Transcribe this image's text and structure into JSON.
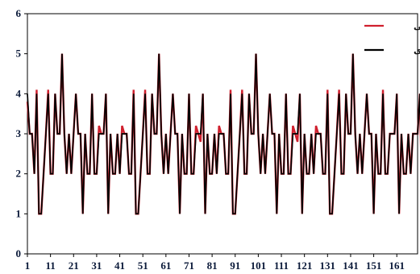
{
  "chart_data": {
    "type": "line",
    "title": "",
    "xlabel": "",
    "ylabel": "",
    "ylim": [
      0,
      6
    ],
    "y_ticks": [
      "0",
      "1",
      "2",
      "3",
      "4",
      "5",
      "6"
    ],
    "x_ticks": [
      "1",
      "11",
      "21",
      "31",
      "41",
      "51",
      "61",
      "71",
      "81",
      "91",
      "101",
      "111",
      "121",
      "131",
      "141",
      "151",
      "161"
    ],
    "x_range": [
      1,
      170
    ],
    "grid": false,
    "legend_position": "top-right",
    "series": [
      {
        "name": "محاسباتی",
        "color": "#d0202e",
        "values": [
          3.8,
          3.0,
          3.0,
          2.0,
          4.1,
          1.0,
          1.0,
          2.0,
          3.0,
          4.1,
          2.0,
          2.0,
          4.0,
          3.0,
          3.0,
          5.0,
          3.0,
          2.0,
          3.0,
          2.0,
          3.0,
          4.0,
          3.0,
          3.0,
          1.0,
          3.0,
          2.0,
          2.0,
          4.0,
          2.0,
          2.0,
          3.2,
          3.0,
          3.0,
          4.0,
          1.0,
          3.0,
          2.0,
          2.0,
          3.0,
          2.0,
          3.2,
          3.0,
          3.0,
          2.0,
          2.0,
          4.1,
          1.0,
          1.0,
          2.0,
          3.0,
          4.1,
          2.0,
          2.0,
          4.0,
          3.0,
          3.0,
          5.0,
          3.0,
          2.0,
          3.0,
          2.0,
          3.0,
          4.0,
          3.0,
          3.0,
          1.0,
          3.0,
          2.0,
          2.0,
          4.0,
          2.0,
          2.0,
          3.2,
          3.0,
          2.8,
          4.0,
          1.0,
          3.0,
          2.0,
          2.0,
          3.0,
          2.0,
          3.2,
          3.0,
          3.0,
          2.0,
          2.0,
          4.1,
          1.0,
          1.0,
          2.0,
          3.0,
          4.1,
          2.0,
          2.0,
          4.0,
          3.0,
          3.0,
          5.0,
          3.0,
          2.0,
          3.0,
          2.0,
          3.0,
          4.0,
          3.0,
          3.0,
          1.0,
          3.0,
          2.0,
          2.0,
          4.0,
          2.0,
          2.0,
          3.2,
          3.0,
          2.8,
          4.0,
          1.0,
          3.0,
          2.0,
          2.0,
          3.0,
          2.0,
          3.2,
          3.0,
          3.0,
          2.0,
          2.0,
          4.1,
          1.0,
          1.0,
          2.0,
          3.0,
          4.1,
          2.0,
          2.0,
          4.0,
          3.0,
          3.0,
          5.0,
          3.0,
          2.0,
          3.0,
          2.0,
          3.0,
          4.0,
          3.0,
          3.0,
          1.0,
          3.0,
          2.0,
          2.0,
          4.1,
          2.0,
          2.0,
          3.0,
          3.0,
          3.0,
          4.0,
          1.0,
          3.0,
          2.0,
          2.0,
          3.0,
          2.0,
          3.0,
          3.0,
          3.0,
          4.0,
          1.0
        ]
      },
      {
        "name": "مشاهده‌ای",
        "color": "#000000",
        "values": [
          4.0,
          3.0,
          3.0,
          2.0,
          4.0,
          1.0,
          1.0,
          2.0,
          3.0,
          4.0,
          2.0,
          2.0,
          4.0,
          3.0,
          3.0,
          5.0,
          3.0,
          2.0,
          3.0,
          2.0,
          3.0,
          4.0,
          3.0,
          3.0,
          1.0,
          3.0,
          2.0,
          2.0,
          4.0,
          2.0,
          2.0,
          3.0,
          3.0,
          3.0,
          4.0,
          1.0,
          3.0,
          2.0,
          2.0,
          3.0,
          2.0,
          3.0,
          3.0,
          3.0,
          2.0,
          2.0,
          4.0,
          1.0,
          1.0,
          2.0,
          3.0,
          4.0,
          2.0,
          2.0,
          4.0,
          3.0,
          3.0,
          5.0,
          3.0,
          2.0,
          3.0,
          2.0,
          3.0,
          4.0,
          3.0,
          3.0,
          1.0,
          3.0,
          2.0,
          2.0,
          4.0,
          2.0,
          2.0,
          3.0,
          3.0,
          3.0,
          4.0,
          1.0,
          3.0,
          2.0,
          2.0,
          3.0,
          2.0,
          3.0,
          3.0,
          3.0,
          2.0,
          2.0,
          4.0,
          1.0,
          1.0,
          2.0,
          3.0,
          4.0,
          2.0,
          2.0,
          4.0,
          3.0,
          3.0,
          5.0,
          3.0,
          2.0,
          3.0,
          2.0,
          3.0,
          4.0,
          3.0,
          3.0,
          1.0,
          3.0,
          2.0,
          2.0,
          4.0,
          2.0,
          2.0,
          3.0,
          3.0,
          3.0,
          4.0,
          1.0,
          3.0,
          2.0,
          2.0,
          3.0,
          2.0,
          3.0,
          3.0,
          3.0,
          2.0,
          2.0,
          4.0,
          1.0,
          1.0,
          2.0,
          3.0,
          4.0,
          2.0,
          2.0,
          4.0,
          3.0,
          3.0,
          5.0,
          3.0,
          2.0,
          3.0,
          2.0,
          3.0,
          4.0,
          3.0,
          3.0,
          1.0,
          3.0,
          2.0,
          2.0,
          4.0,
          2.0,
          2.0,
          3.0,
          3.0,
          3.0,
          4.0,
          1.0,
          3.0,
          2.0,
          2.0,
          3.0,
          2.0,
          3.0,
          3.0,
          3.0,
          4.0,
          1.0
        ]
      }
    ]
  }
}
